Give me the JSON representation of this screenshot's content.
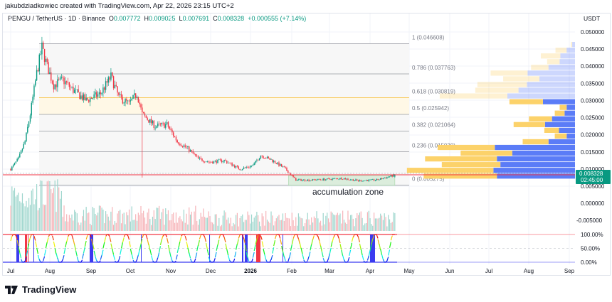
{
  "header": {
    "credit": "jakubdziadkowiec created with TradingView.com, Apr 22, 2026 23:15 UTC+2",
    "symbol": "PENGU / TetherUS · 1D · Binance",
    "open_label": "O",
    "open": "0.007772",
    "high_label": "H",
    "high": "0.009025",
    "low_label": "L",
    "low": "0.007691",
    "close_label": "C",
    "close": "0.008328",
    "change": "+0.000555 (+7.14%)",
    "currency": "USDT"
  },
  "footer": {
    "brand": "TradingView"
  },
  "colors": {
    "up": "#089981",
    "down": "#f23645",
    "fib_highlight": "#f7b924",
    "profile_up": "#fcd26a",
    "profile_down": "#5b7cf7",
    "accum_zone": "#c8e6c9",
    "price_line": "#f23645",
    "price_label_bg": "#089981"
  },
  "chart_data": {
    "type": "candlestick",
    "price_axis": {
      "ylim": [
        0.003,
        0.052
      ],
      "ticks": [
        "0.050000",
        "0.045000",
        "0.040000",
        "0.035000",
        "0.030000",
        "0.025000",
        "0.020000",
        "0.015000",
        "0.010000",
        "0.005000"
      ]
    },
    "volume_axis": {
      "ticks": [
        "0.000000",
        "-0.005000"
      ]
    },
    "oscillator_axis": {
      "ticks": [
        "100.00%",
        "50.00%",
        "0.00%"
      ]
    },
    "time_axis": {
      "ticks": [
        "Jul",
        "Aug",
        "Sep",
        "Oct",
        "Nov",
        "Dec",
        "2026",
        "Feb",
        "Mar",
        "Apr",
        "May",
        "Jun",
        "Jul",
        "Aug",
        "Sep"
      ]
    },
    "last_price": {
      "value": "0.008328",
      "countdown": "02:45:00"
    },
    "price_path": [
      [
        "2025-07-01",
        0.01
      ],
      [
        "2025-07-07",
        0.013
      ],
      [
        "2025-07-12",
        0.018
      ],
      [
        "2025-07-16",
        0.026
      ],
      [
        "2025-07-21",
        0.038
      ],
      [
        "2025-07-25",
        0.0455
      ],
      [
        "2025-07-29",
        0.04
      ],
      [
        "2025-08-03",
        0.0345
      ],
      [
        "2025-08-10",
        0.036
      ],
      [
        "2025-08-18",
        0.033
      ],
      [
        "2025-08-28",
        0.03
      ],
      [
        "2025-09-08",
        0.032
      ],
      [
        "2025-09-16",
        0.037
      ],
      [
        "2025-09-22",
        0.031
      ],
      [
        "2025-09-30",
        0.029
      ],
      [
        "2025-10-06",
        0.032
      ],
      [
        "2025-10-10",
        0.026
      ],
      [
        "2025-10-20",
        0.0225
      ],
      [
        "2025-10-29",
        0.023
      ],
      [
        "2025-11-06",
        0.018
      ],
      [
        "2025-11-14",
        0.016
      ],
      [
        "2025-11-22",
        0.013
      ],
      [
        "2025-12-01",
        0.012
      ],
      [
        "2025-12-12",
        0.0125
      ],
      [
        "2025-12-24",
        0.01
      ],
      [
        "2026-01-03",
        0.011
      ],
      [
        "2026-01-09",
        0.014
      ],
      [
        "2026-01-18",
        0.0125
      ],
      [
        "2026-01-28",
        0.01
      ],
      [
        "2026-02-05",
        0.0068
      ],
      [
        "2026-02-15",
        0.0068
      ],
      [
        "2026-02-28",
        0.007
      ],
      [
        "2026-03-12",
        0.0073
      ],
      [
        "2026-03-25",
        0.0066
      ],
      [
        "2026-04-08",
        0.0068
      ],
      [
        "2026-04-16",
        0.0076
      ],
      [
        "2026-04-22",
        0.0083
      ]
    ],
    "fib_levels": [
      {
        "ratio": "1",
        "price": "0.046608",
        "label": "1 (0.046608)"
      },
      {
        "ratio": "0.786",
        "price": "0.037763",
        "label": "0.786 (0.037763)"
      },
      {
        "ratio": "0.618",
        "price": "0.030819",
        "label": "0.618 (0.030819)",
        "highlight": true
      },
      {
        "ratio": "0.5",
        "price": "0.025942",
        "label": "0.5 (0.025942)"
      },
      {
        "ratio": "0.382",
        "price": "0.021064",
        "label": "0.382 (0.021064)"
      },
      {
        "ratio": "0.236",
        "price": "0.015030",
        "label": "0.236 (0.015030)"
      },
      {
        "ratio": "0",
        "price": "0.005275",
        "label": "0 (0.005275)"
      }
    ],
    "annotation": {
      "text": "accumulation zone",
      "from": "2026-02-01",
      "to": "2026-04-22",
      "price_low": 0.0054,
      "price_high": 0.0083
    },
    "volume_profile": [
      [
        2,
        4,
        false
      ],
      [
        16,
        12,
        false
      ],
      [
        28,
        21,
        false
      ],
      [
        18,
        22,
        false
      ],
      [
        25,
        38,
        false
      ],
      [
        53,
        68,
        false
      ],
      [
        52,
        51,
        false
      ],
      [
        71,
        69,
        false
      ],
      [
        62,
        81,
        false
      ],
      [
        97,
        97,
        false
      ],
      [
        48,
        46,
        true
      ],
      [
        10,
        12,
        true
      ],
      [
        14,
        15,
        true
      ],
      [
        33,
        33,
        true
      ],
      [
        45,
        43,
        true
      ],
      [
        21,
        23,
        true
      ],
      [
        17,
        12,
        true
      ],
      [
        37,
        38,
        true
      ],
      [
        82,
        115,
        true
      ],
      [
        74,
        90,
        true
      ],
      [
        103,
        112,
        true
      ],
      [
        84,
        107,
        true
      ],
      [
        124,
        117,
        true
      ],
      [
        105,
        112,
        true
      ]
    ],
    "oscillator_overbought": "100%",
    "oscillator_oversold": "0%"
  }
}
